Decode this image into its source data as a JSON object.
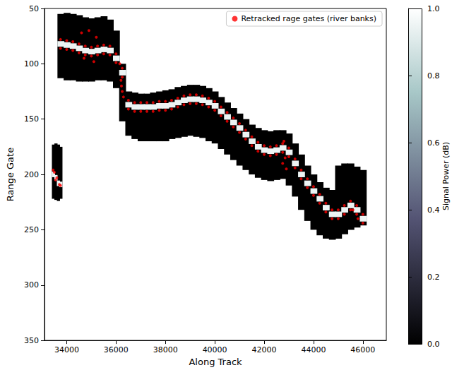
{
  "chart_data": {
    "type": "heatmap",
    "xlabel": "Along Track",
    "ylabel": "Range Gate",
    "xlim": [
      33100,
      46950
    ],
    "xticks": [
      34000,
      36000,
      38000,
      40000,
      42000,
      44000,
      46000
    ],
    "ylim": [
      350,
      50
    ],
    "yticks": [
      50,
      100,
      150,
      200,
      250,
      300,
      350
    ],
    "legend": "upper right",
    "colorbar": {
      "label": "Signal Power (dB)",
      "range": [
        0,
        1
      ],
      "ticks": [
        {
          "value": 0,
          "label": "0.0"
        },
        {
          "value": 0.2,
          "label": "0.2"
        },
        {
          "value": 0.4,
          "label": "0.4"
        },
        {
          "value": 0.6,
          "label": "0.6"
        },
        {
          "value": 0.8,
          "label": "0.8"
        },
        {
          "value": 1,
          "label": "1.0"
        }
      ]
    },
    "swaths": [
      {
        "x": [
          33450,
          33550,
          33650,
          33750
        ],
        "top": [
          173,
          172,
          173,
          175
        ],
        "bottom": [
          222,
          223,
          224,
          222
        ],
        "power": 0,
        "echo": [
          200,
          203,
          208,
          209
        ],
        "echo_power": 0.95
      },
      {
        "x": [
          33750,
          34000,
          34250,
          34500,
          34750,
          35000,
          35250,
          35500,
          35750,
          36000,
          36250,
          36500,
          36750,
          37000,
          37250,
          37500,
          37750,
          38000,
          38250,
          38500,
          38750,
          39000,
          39250,
          39500,
          39750,
          40000,
          40250,
          40500,
          40750,
          41000,
          41250,
          41500,
          41750,
          42000,
          42250,
          42500,
          42750,
          43000,
          43250,
          43500,
          43750,
          44000,
          44250,
          44500,
          44750,
          45000,
          45250,
          45500,
          45750,
          46000
        ],
        "top": [
          55,
          54,
          55,
          56,
          58,
          59,
          58,
          57,
          60,
          70,
          100,
          125,
          126,
          127,
          127,
          126,
          125,
          124,
          123,
          121,
          120,
          119,
          119,
          120,
          122,
          125,
          130,
          135,
          140,
          145,
          150,
          155,
          158,
          160,
          161,
          160,
          160,
          163,
          172,
          182,
          192,
          200,
          207,
          212,
          214,
          192,
          190,
          190,
          193,
          196
        ],
        "bottom": [
          113,
          115,
          115,
          116,
          116,
          116,
          115,
          115,
          116,
          122,
          152,
          165,
          168,
          170,
          170,
          170,
          170,
          170,
          168,
          167,
          166,
          165,
          166,
          167,
          170,
          172,
          177,
          182,
          187,
          192,
          196,
          200,
          203,
          205,
          206,
          205,
          204,
          210,
          220,
          232,
          242,
          250,
          255,
          258,
          259,
          258,
          254,
          250,
          248,
          246
        ],
        "power": 0,
        "echo": [
          82,
          83,
          84,
          86,
          88,
          89,
          88,
          87,
          88,
          95,
          108,
          137,
          139,
          139,
          139,
          139,
          138,
          138,
          137,
          135,
          133,
          132,
          132,
          133,
          135,
          138,
          143,
          148,
          153,
          158,
          164,
          170,
          175,
          178,
          179,
          178,
          176,
          180,
          190,
          200,
          208,
          215,
          222,
          230,
          236,
          236,
          232,
          228,
          232,
          240
        ],
        "echo_power": 0.95
      }
    ],
    "series": [
      {
        "name": "Retracked rage gates (river banks)",
        "type": "scatter",
        "color": "#ff0000",
        "marker": "circle",
        "x": [
          33750,
          34000,
          34250,
          34500,
          34750,
          35000,
          35250,
          35500,
          35750,
          36000,
          36250,
          36500,
          36750,
          37000,
          37250,
          37500,
          37750,
          38000,
          38250,
          38500,
          38750,
          39000,
          39250,
          39500,
          39750,
          40000,
          40250,
          40500,
          40750,
          41000,
          41250,
          41500,
          41750,
          42000,
          42250,
          42500,
          42750,
          43000,
          43250,
          43500,
          43750,
          44000,
          44250,
          44500,
          44750,
          45000,
          45250,
          45500,
          45750,
          46000,
          33750,
          34000,
          34250,
          34500,
          34750,
          35000,
          35250,
          35500,
          35750,
          36000,
          36250,
          36500,
          36750,
          37000,
          37250,
          37500,
          37750,
          38000,
          38250,
          38500,
          38750,
          39000,
          39250,
          39500,
          39750,
          40000,
          40250,
          40500,
          40750,
          41000,
          41250,
          41500,
          41750,
          42000,
          42250,
          42500,
          42750,
          43000,
          43250,
          43500,
          43750,
          44000,
          44250,
          44500,
          44750,
          45000,
          45250,
          45500,
          45750,
          46000,
          34600,
          34700,
          34900,
          35100,
          35200,
          36150,
          36200,
          36220,
          36250,
          36300,
          42750,
          42800,
          42850,
          42900,
          45600,
          45800,
          33450,
          33500,
          33550,
          33600,
          33700,
          33750
        ],
        "y": [
          78,
          79,
          80,
          82,
          84,
          85,
          84,
          83,
          84,
          91,
          104,
          133,
          135,
          135,
          135,
          135,
          134,
          134,
          133,
          131,
          129,
          128,
          128,
          129,
          131,
          134,
          139,
          144,
          149,
          154,
          160,
          166,
          171,
          174,
          175,
          174,
          172,
          176,
          186,
          196,
          204,
          211,
          218,
          226,
          232,
          232,
          228,
          224,
          228,
          236,
          86,
          87,
          88,
          90,
          92,
          93,
          92,
          91,
          92,
          99,
          112,
          141,
          143,
          143,
          143,
          143,
          142,
          142,
          141,
          139,
          137,
          136,
          136,
          137,
          139,
          142,
          147,
          152,
          157,
          162,
          168,
          174,
          179,
          182,
          183,
          182,
          180,
          184,
          194,
          204,
          212,
          219,
          226,
          234,
          240,
          240,
          236,
          232,
          236,
          244,
          72,
          95,
          70,
          98,
          76,
          100,
          115,
          120,
          125,
          130,
          190,
          170,
          185,
          195,
          232,
          240,
          196,
          198,
          205,
          203,
          209,
          210
        ]
      }
    ]
  }
}
